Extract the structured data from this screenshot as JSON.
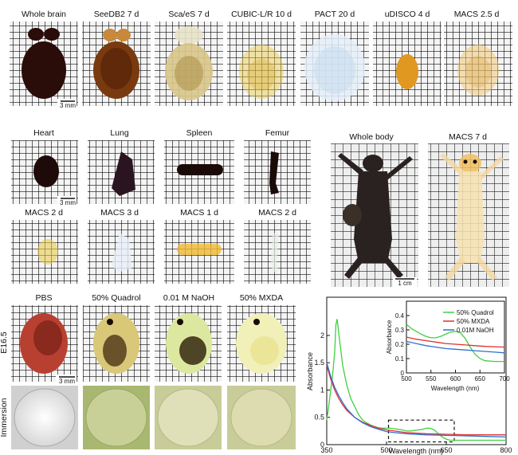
{
  "brain_row": {
    "labels": [
      "Whole brain",
      "SeeDB2 7 d",
      "Sca/eS 7 d",
      "CUBIC-L/R 10 d",
      "PACT 20 d",
      "uDISCO 4 d",
      "MACS 2.5 d"
    ],
    "scale": "3 mm"
  },
  "organs_top": {
    "labels": [
      "Heart",
      "Lung",
      "Spleen",
      "Femur"
    ],
    "scale": "3 mm"
  },
  "organs_bottom": {
    "labels": [
      "MACS 2 d",
      "MACS 3 d",
      "MACS 1 d",
      "MACS 2 d"
    ]
  },
  "whole_body": {
    "labels": [
      "Whole body",
      "MACS 7 d"
    ],
    "scale": "1 cm"
  },
  "embryo": {
    "labels": [
      "PBS",
      "50% Quadrol",
      "0.01 M NaOH",
      "50% MXDA"
    ],
    "row_label": "E16.5",
    "scale": "3 mm"
  },
  "immersion": {
    "row_label": "Immersion"
  },
  "chart_data": [
    {
      "type": "line",
      "xlabel": "Wavelength (nm)",
      "ylabel": "Absorbance",
      "xlim": [
        350,
        800
      ],
      "ylim": [
        0,
        2.7
      ],
      "xticks": [
        "350",
        "500",
        "650",
        "800"
      ],
      "yticks": [
        "0",
        "0.5",
        "1",
        "1.5",
        "2"
      ],
      "series": [
        {
          "color": "#40d040",
          "x": [
            350,
            355,
            360,
            365,
            370,
            373,
            376,
            380,
            385,
            390,
            400,
            410,
            420,
            430,
            440,
            450,
            460,
            470,
            480,
            490,
            500,
            510,
            520,
            530,
            540,
            550,
            560,
            570,
            580,
            590,
            600,
            610,
            620,
            630,
            640,
            650,
            660,
            680,
            700,
            720,
            750,
            780,
            800
          ],
          "y": [
            0.45,
            0.7,
            1.0,
            1.3,
            1.7,
            2.2,
            2.3,
            2.05,
            1.75,
            1.45,
            1.1,
            0.85,
            0.7,
            0.55,
            0.45,
            0.4,
            0.36,
            0.33,
            0.31,
            0.3,
            0.3,
            0.3,
            0.29,
            0.28,
            0.27,
            0.25,
            0.25,
            0.26,
            0.27,
            0.28,
            0.3,
            0.3,
            0.27,
            0.2,
            0.14,
            0.1,
            0.08,
            0.08,
            0.08,
            0.08,
            0.08,
            0.08,
            0.08
          ]
        },
        {
          "color": "#e03030",
          "x": [
            350,
            360,
            370,
            380,
            390,
            400,
            420,
            440,
            460,
            480,
            500,
            520,
            550,
            600,
            650,
            700,
            750,
            800
          ],
          "y": [
            1.45,
            1.2,
            1.0,
            0.85,
            0.73,
            0.63,
            0.5,
            0.41,
            0.35,
            0.3,
            0.27,
            0.25,
            0.22,
            0.2,
            0.19,
            0.18,
            0.18,
            0.18
          ]
        },
        {
          "color": "#3070d0",
          "x": [
            350,
            360,
            370,
            380,
            390,
            400,
            420,
            440,
            460,
            480,
            500,
            520,
            550,
            600,
            650,
            700,
            750,
            800
          ],
          "y": [
            1.5,
            1.25,
            1.05,
            0.9,
            0.77,
            0.66,
            0.5,
            0.4,
            0.33,
            0.28,
            0.24,
            0.22,
            0.2,
            0.18,
            0.17,
            0.16,
            0.15,
            0.14
          ]
        }
      ],
      "highlight_box": {
        "x": [
          505,
          670
        ],
        "y": [
          0.05,
          0.45
        ]
      }
    },
    {
      "type": "line",
      "xlabel": "Wavelength (nm)",
      "ylabel": "Absorbance",
      "xlim": [
        500,
        700
      ],
      "ylim": [
        0,
        0.5
      ],
      "xticks": [
        "500",
        "550",
        "600",
        "650",
        "700"
      ],
      "yticks": [
        "0",
        "0.1",
        "0.2",
        "0.3",
        "0.4"
      ],
      "series": [
        {
          "name": "50% Quadrol",
          "color": "#40d040",
          "x": [
            500,
            510,
            520,
            530,
            540,
            550,
            560,
            570,
            580,
            590,
            600,
            610,
            620,
            630,
            640,
            650,
            660,
            680,
            700
          ],
          "y": [
            0.34,
            0.31,
            0.29,
            0.27,
            0.255,
            0.245,
            0.245,
            0.255,
            0.27,
            0.285,
            0.29,
            0.28,
            0.24,
            0.18,
            0.13,
            0.1,
            0.085,
            0.08,
            0.08
          ]
        },
        {
          "name": "50% MXDA",
          "color": "#e03030",
          "x": [
            500,
            520,
            540,
            560,
            580,
            600,
            620,
            640,
            660,
            680,
            700
          ],
          "y": [
            0.25,
            0.235,
            0.225,
            0.215,
            0.205,
            0.2,
            0.195,
            0.19,
            0.185,
            0.183,
            0.18
          ]
        },
        {
          "name": "0.01M NaOH",
          "color": "#3070d0",
          "x": [
            500,
            520,
            540,
            560,
            580,
            600,
            620,
            640,
            660,
            680,
            700
          ],
          "y": [
            0.22,
            0.205,
            0.19,
            0.18,
            0.17,
            0.165,
            0.16,
            0.155,
            0.15,
            0.145,
            0.14
          ]
        }
      ]
    }
  ]
}
